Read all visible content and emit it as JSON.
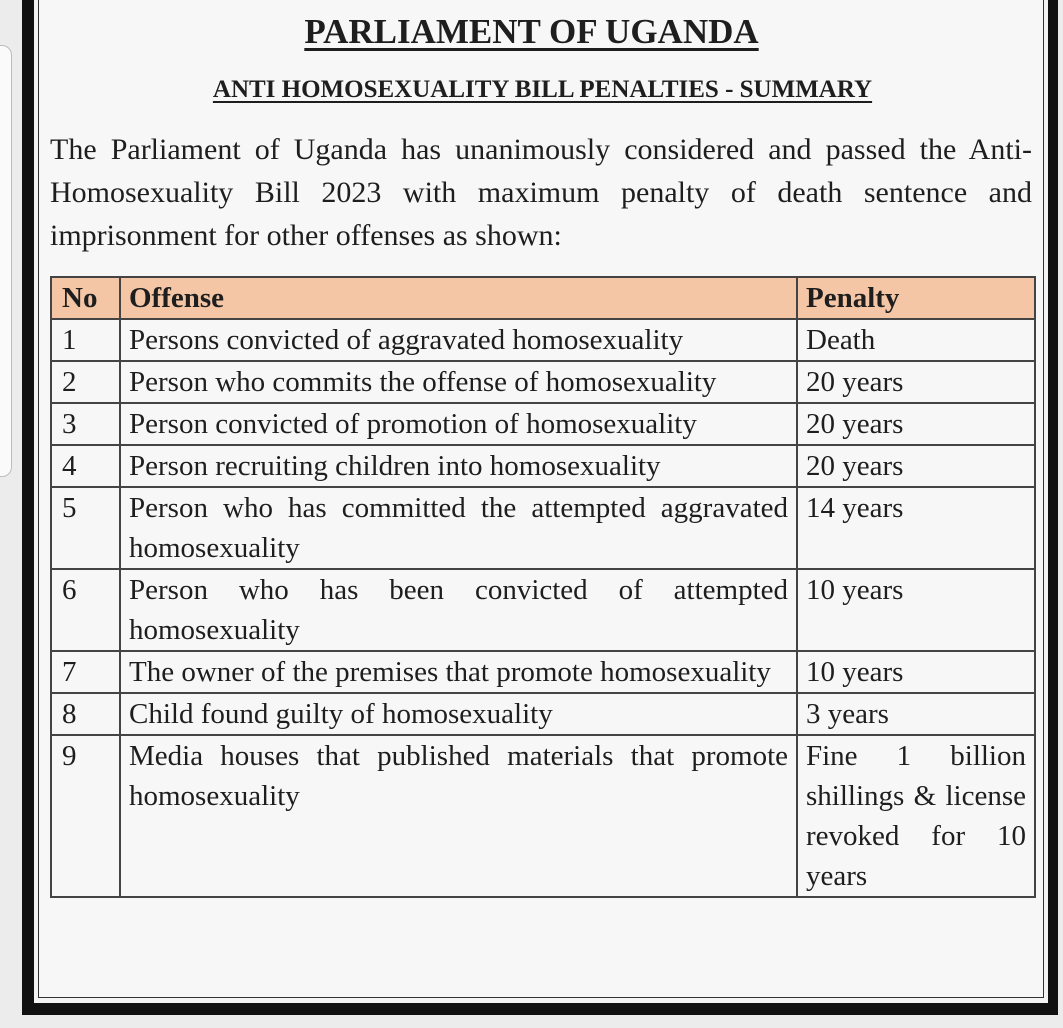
{
  "title": "PARLIAMENT OF UGANDA",
  "subtitle": "ANTI HOMOSEXUALITY BILL PENALTIES - SUMMARY",
  "intro": "The Parliament of Uganda has unanimously considered and passed the Anti-Homosexuality Bill 2023 with maximum penalty of death sentence and imprisonment for other offenses as shown:",
  "table": {
    "headers": {
      "no": "No",
      "offense": "Offense",
      "penalty": "Penalty"
    },
    "header_color": "#f5c6a6",
    "rows": [
      {
        "no": "1",
        "offense": "Persons convicted of aggravated homosexuality",
        "penalty": "Death"
      },
      {
        "no": "2",
        "offense": "Person who commits the offense of homosexuality",
        "penalty": "20 years"
      },
      {
        "no": "3",
        "offense": "Person convicted of promotion of homosexuality",
        "penalty": "20 years"
      },
      {
        "no": "4",
        "offense": "Person recruiting children into homosexuality",
        "penalty": "20 years"
      },
      {
        "no": "5",
        "offense": "Person who has committed the attempted aggravated homosexuality",
        "penalty": "14 years"
      },
      {
        "no": "6",
        "offense": "Person who has been convicted of attempted homosexuality",
        "penalty": "10 years"
      },
      {
        "no": "7",
        "offense": "The owner of the premises that promote homosexuality",
        "penalty": "10 years"
      },
      {
        "no": "8",
        "offense": "Child found guilty of homosexuality",
        "penalty": "3 years"
      },
      {
        "no": "9",
        "offense": "Media houses that published materials that promote homosexuality",
        "penalty": "Fine 1 billion shillings & license revoked for 10 years"
      }
    ]
  }
}
